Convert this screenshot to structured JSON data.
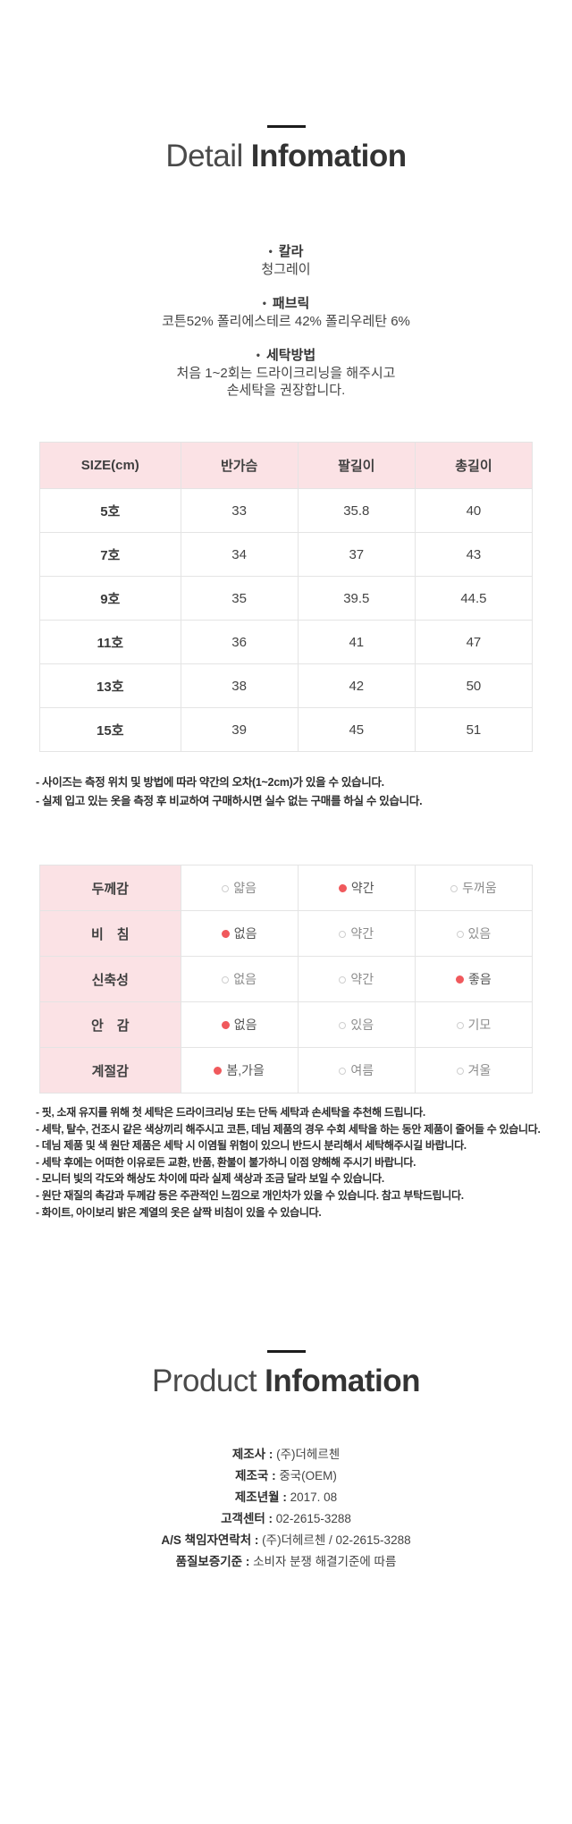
{
  "detail_section": {
    "title_light": "Detail",
    "title_bold": "Infomation",
    "bullet": "•",
    "specs": [
      {
        "label": "칼라",
        "lines": [
          "청그레이"
        ]
      },
      {
        "label": "패브릭",
        "lines": [
          "코튼52% 폴리에스테르 42% 폴리우레탄 6%"
        ]
      },
      {
        "label": "세탁방법",
        "lines": [
          "처음 1~2회는 드라이크리닝을 해주시고",
          "손세탁을 권장합니다."
        ]
      }
    ]
  },
  "size_table": {
    "headers": [
      "SIZE(cm)",
      "반가슴",
      "팔길이",
      "총길이"
    ],
    "rows": [
      [
        "5호",
        "33",
        "35.8",
        "40"
      ],
      [
        "7호",
        "34",
        "37",
        "43"
      ],
      [
        "9호",
        "35",
        "39.5",
        "44.5"
      ],
      [
        "11호",
        "36",
        "41",
        "47"
      ],
      [
        "13호",
        "38",
        "42",
        "50"
      ],
      [
        "15호",
        "39",
        "45",
        "51"
      ]
    ],
    "notes": [
      "- 사이즈는 측정 위치 및 방법에 따라 약간의 오차(1~2cm)가 있을 수 있습니다.",
      "- 실제 입고 있는 옷을 측정 후 비교하여 구매하시면 실수 없는 구매를 하실 수 있습니다."
    ]
  },
  "attribute_table": {
    "rows": [
      {
        "label": "두께감",
        "options": [
          {
            "text": "얇음",
            "selected": false
          },
          {
            "text": "약간",
            "selected": true
          },
          {
            "text": "두꺼움",
            "selected": false
          }
        ]
      },
      {
        "label": "비　침",
        "options": [
          {
            "text": "없음",
            "selected": true
          },
          {
            "text": "약간",
            "selected": false
          },
          {
            "text": "있음",
            "selected": false
          }
        ]
      },
      {
        "label": "신축성",
        "options": [
          {
            "text": "없음",
            "selected": false
          },
          {
            "text": "약간",
            "selected": false
          },
          {
            "text": "좋음",
            "selected": true
          }
        ]
      },
      {
        "label": "안　감",
        "options": [
          {
            "text": "없음",
            "selected": true
          },
          {
            "text": "있음",
            "selected": false
          },
          {
            "text": "기모",
            "selected": false
          }
        ]
      },
      {
        "label": "계절감",
        "options": [
          {
            "text": "봄,가을",
            "selected": true
          },
          {
            "text": "여름",
            "selected": false
          },
          {
            "text": "겨울",
            "selected": false
          }
        ]
      }
    ]
  },
  "care_notes": [
    "- 핏, 소재 유지를 위해 첫 세탁은 드라이크리닝 또는 단독 세탁과 손세탁을 추천해 드립니다.",
    "- 세탁, 탈수, 건조시 같은 색상끼리 해주시고 코튼, 데님 제품의 경우 수회 세탁을 하는 동안 제품이 줄어들 수 있습니다.",
    "- 데님 제품 및 색 원단 제품은 세탁 시 이염될 위험이 있으니 반드시 분리해서 세탁해주시길 바랍니다.",
    "- 세탁 후에는 어떠한 이유로든 교환, 반품, 환불이 불가하니 이점 양해해 주시기 바랍니다.",
    "- 모니터 빛의 각도와 해상도 차이에 따라 실제 색상과 조금 달라 보일 수 있습니다.",
    "- 원단 재질의 촉감과 두께감 등은 주관적인 느낌으로 개인차가 있을 수 있습니다. 참고 부탁드립니다.",
    "- 화이트, 아이보리 밝은 계열의 옷은 살짝 비침이 있을 수 있습니다."
  ],
  "product_section": {
    "title_light": "Product",
    "title_bold": "Infomation",
    "separator": " : ",
    "rows": [
      {
        "label": "제조사",
        "value": "(주)더헤르첸"
      },
      {
        "label": "제조국",
        "value": "중국(OEM)"
      },
      {
        "label": "제조년월",
        "value": "2017. 08"
      },
      {
        "label": "고객센터",
        "value": "02-2615-3288"
      },
      {
        "label": "A/S 책임자연락처",
        "value": "(주)더헤르첸 / 02-2615-3288"
      },
      {
        "label": "품질보증기준",
        "value": "소비자 분쟁 해결기준에 따름"
      }
    ]
  },
  "colors": {
    "accent_pink": "#fbe2e5",
    "radio_red": "#f0595c",
    "table_border": "#e4e4e4"
  }
}
